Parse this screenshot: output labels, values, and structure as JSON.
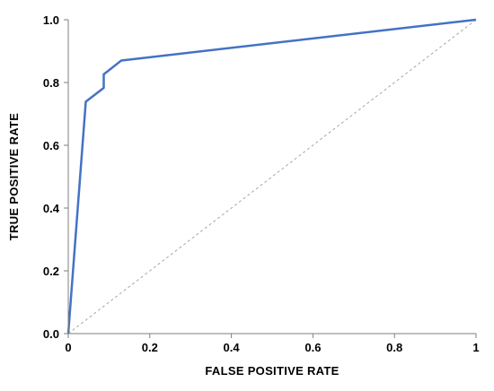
{
  "chart_data": {
    "type": "line",
    "title": "",
    "xlabel": "FALSE POSITIVE  RATE",
    "ylabel": "TRUE POSITIVE  RATE",
    "xlim": [
      0,
      1
    ],
    "ylim": [
      0,
      1.0
    ],
    "x_ticks": [
      0,
      0.2,
      0.4,
      0.6,
      0.8,
      1
    ],
    "x_tick_labels": [
      "0",
      "0.2",
      "0.4",
      "0.6",
      "0.8",
      "1"
    ],
    "y_ticks": [
      0,
      0.2,
      0.4,
      0.6,
      0.8,
      1.0
    ],
    "y_tick_labels": [
      "0.0",
      "0.2",
      "0.4",
      "0.6",
      "0.8",
      "1.0"
    ],
    "grid": false,
    "legend": "none",
    "series": [
      {
        "style": "solid",
        "color": "#4472c4",
        "x": [
          0,
          0.043,
          0.087,
          0.087,
          0.13,
          1.0
        ],
        "y": [
          0,
          0.739,
          0.783,
          0.826,
          0.87,
          1.0
        ]
      },
      {
        "style": "dotted",
        "color": "#a6a6a6",
        "x": [
          0,
          1
        ],
        "y": [
          0,
          1
        ]
      }
    ]
  }
}
